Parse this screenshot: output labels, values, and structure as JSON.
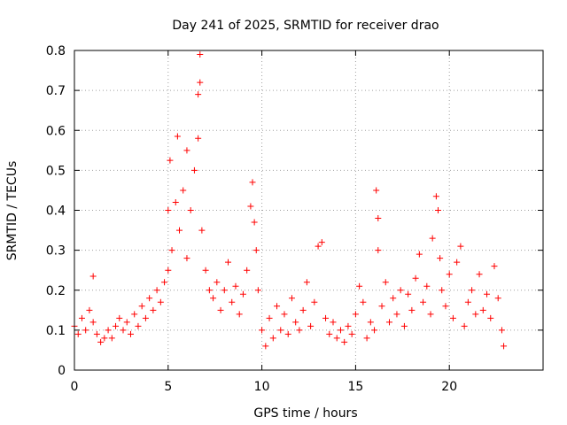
{
  "chart_data": {
    "type": "scatter",
    "title": "Day 241 of 2025, SRMTID for receiver drao",
    "xlabel": "GPS time / hours",
    "ylabel": "SRMTID / TECUs",
    "xlim": [
      0,
      25
    ],
    "ylim": [
      0,
      0.8
    ],
    "x_ticks": [
      0,
      5,
      10,
      15,
      20
    ],
    "x_tick_labels": [
      "0",
      "5",
      "10",
      "15",
      "20"
    ],
    "y_ticks": [
      0,
      0.1,
      0.2,
      0.3,
      0.4,
      0.5,
      0.6,
      0.7,
      0.8
    ],
    "y_tick_labels": [
      "0",
      "0.1",
      "0.2",
      "0.3",
      "0.4",
      "0.5",
      "0.6",
      "0.7",
      "0.8"
    ],
    "grid": true,
    "marker": "+",
    "color": "#ff0000",
    "series": [
      {
        "name": "SRMTID",
        "points": [
          [
            0.0,
            0.11
          ],
          [
            0.2,
            0.09
          ],
          [
            0.4,
            0.13
          ],
          [
            0.6,
            0.1
          ],
          [
            0.8,
            0.15
          ],
          [
            1.0,
            0.12
          ],
          [
            1.0,
            0.235
          ],
          [
            1.2,
            0.09
          ],
          [
            1.4,
            0.07
          ],
          [
            1.6,
            0.08
          ],
          [
            1.8,
            0.1
          ],
          [
            2.0,
            0.08
          ],
          [
            2.2,
            0.11
          ],
          [
            2.4,
            0.13
          ],
          [
            2.6,
            0.1
          ],
          [
            2.8,
            0.12
          ],
          [
            3.0,
            0.09
          ],
          [
            3.2,
            0.14
          ],
          [
            3.4,
            0.11
          ],
          [
            3.6,
            0.16
          ],
          [
            3.8,
            0.13
          ],
          [
            4.0,
            0.18
          ],
          [
            4.2,
            0.15
          ],
          [
            4.4,
            0.2
          ],
          [
            4.6,
            0.17
          ],
          [
            4.8,
            0.22
          ],
          [
            5.0,
            0.25
          ],
          [
            5.0,
            0.4
          ],
          [
            5.1,
            0.525
          ],
          [
            5.2,
            0.3
          ],
          [
            5.4,
            0.42
          ],
          [
            5.5,
            0.585
          ],
          [
            5.6,
            0.35
          ],
          [
            5.8,
            0.45
          ],
          [
            6.0,
            0.28
          ],
          [
            6.0,
            0.55
          ],
          [
            6.2,
            0.4
          ],
          [
            6.4,
            0.5
          ],
          [
            6.6,
            0.58
          ],
          [
            6.6,
            0.69
          ],
          [
            6.7,
            0.72
          ],
          [
            6.7,
            0.79
          ],
          [
            6.8,
            0.35
          ],
          [
            7.0,
            0.25
          ],
          [
            7.2,
            0.2
          ],
          [
            7.4,
            0.18
          ],
          [
            7.6,
            0.22
          ],
          [
            7.8,
            0.15
          ],
          [
            8.0,
            0.2
          ],
          [
            8.2,
            0.27
          ],
          [
            8.4,
            0.17
          ],
          [
            8.6,
            0.21
          ],
          [
            8.8,
            0.14
          ],
          [
            9.0,
            0.19
          ],
          [
            9.2,
            0.25
          ],
          [
            9.4,
            0.41
          ],
          [
            9.5,
            0.47
          ],
          [
            9.6,
            0.37
          ],
          [
            9.7,
            0.3
          ],
          [
            9.8,
            0.2
          ],
          [
            10.0,
            0.1
          ],
          [
            10.2,
            0.06
          ],
          [
            10.4,
            0.13
          ],
          [
            10.6,
            0.08
          ],
          [
            10.8,
            0.16
          ],
          [
            11.0,
            0.1
          ],
          [
            11.2,
            0.14
          ],
          [
            11.4,
            0.09
          ],
          [
            11.6,
            0.18
          ],
          [
            11.8,
            0.12
          ],
          [
            12.0,
            0.1
          ],
          [
            12.2,
            0.15
          ],
          [
            12.4,
            0.22
          ],
          [
            12.6,
            0.11
          ],
          [
            12.8,
            0.17
          ],
          [
            13.0,
            0.31
          ],
          [
            13.2,
            0.32
          ],
          [
            13.4,
            0.13
          ],
          [
            13.6,
            0.09
          ],
          [
            13.8,
            0.12
          ],
          [
            14.0,
            0.08
          ],
          [
            14.2,
            0.1
          ],
          [
            14.4,
            0.07
          ],
          [
            14.6,
            0.11
          ],
          [
            14.8,
            0.09
          ],
          [
            15.0,
            0.14
          ],
          [
            15.2,
            0.21
          ],
          [
            15.4,
            0.17
          ],
          [
            15.6,
            0.08
          ],
          [
            15.8,
            0.12
          ],
          [
            16.0,
            0.1
          ],
          [
            16.1,
            0.45
          ],
          [
            16.2,
            0.38
          ],
          [
            16.2,
            0.3
          ],
          [
            16.4,
            0.16
          ],
          [
            16.6,
            0.22
          ],
          [
            16.8,
            0.12
          ],
          [
            17.0,
            0.18
          ],
          [
            17.2,
            0.14
          ],
          [
            17.4,
            0.2
          ],
          [
            17.6,
            0.11
          ],
          [
            17.8,
            0.19
          ],
          [
            18.0,
            0.15
          ],
          [
            18.2,
            0.23
          ],
          [
            18.4,
            0.29
          ],
          [
            18.6,
            0.17
          ],
          [
            18.8,
            0.21
          ],
          [
            19.0,
            0.14
          ],
          [
            19.1,
            0.33
          ],
          [
            19.3,
            0.435
          ],
          [
            19.4,
            0.4
          ],
          [
            19.5,
            0.28
          ],
          [
            19.6,
            0.2
          ],
          [
            19.8,
            0.16
          ],
          [
            20.0,
            0.24
          ],
          [
            20.2,
            0.13
          ],
          [
            20.4,
            0.27
          ],
          [
            20.6,
            0.31
          ],
          [
            20.8,
            0.11
          ],
          [
            21.0,
            0.17
          ],
          [
            21.2,
            0.2
          ],
          [
            21.4,
            0.14
          ],
          [
            21.6,
            0.24
          ],
          [
            21.8,
            0.15
          ],
          [
            22.0,
            0.19
          ],
          [
            22.2,
            0.13
          ],
          [
            22.4,
            0.26
          ],
          [
            22.6,
            0.18
          ],
          [
            22.8,
            0.1
          ],
          [
            22.9,
            0.06
          ]
        ]
      }
    ]
  }
}
